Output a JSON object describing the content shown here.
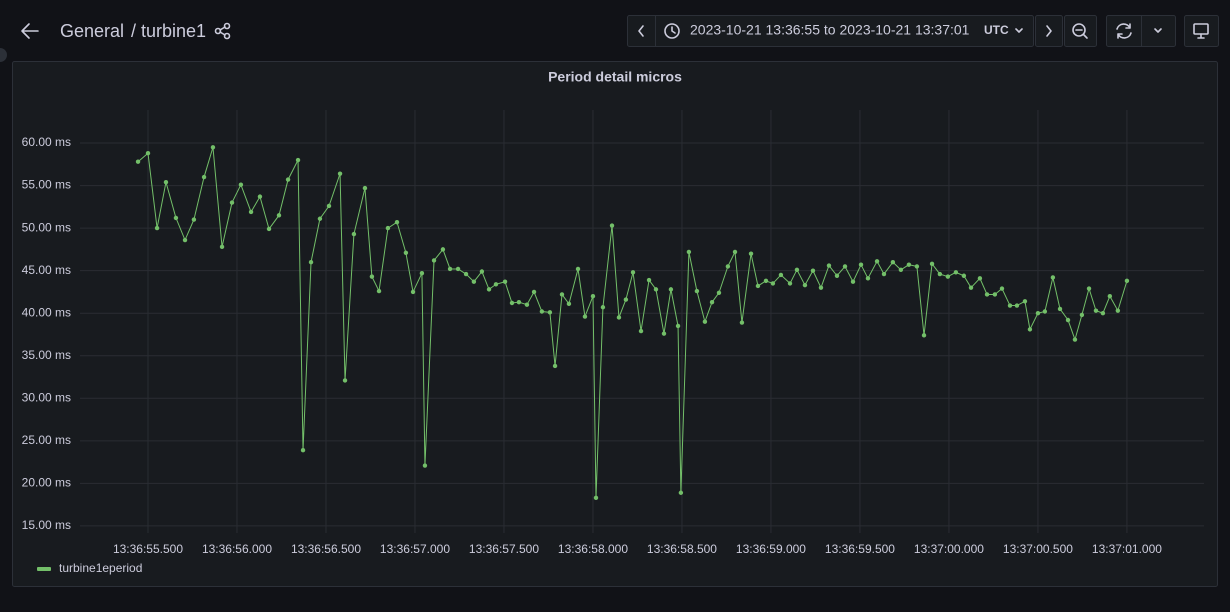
{
  "header": {
    "breadcrumb_root": "General",
    "breadcrumb_page": "/ turbine1",
    "time_range": "2023-10-21 13:36:55 to 2023-10-21 13:37:01",
    "timezone": "UTC"
  },
  "chart_data": {
    "type": "line",
    "title": "Period detail micros",
    "x": [
      "13:36:55.444",
      "13:36:55.500",
      "13:36:55.551",
      "13:36:55.601",
      "13:36:55.657",
      "13:36:55.708",
      "13:36:55.758",
      "13:36:55.815",
      "13:36:55.865",
      "13:36:55.916",
      "13:36:55.972",
      "13:36:56.022",
      "13:36:56.079",
      "13:36:56.129",
      "13:36:56.180",
      "13:36:56.236",
      "13:36:56.287",
      "13:36:56.343",
      "13:36:56.371",
      "13:36:56.416",
      "13:36:56.466",
      "13:36:56.517",
      "13:36:56.579",
      "13:36:56.607",
      "13:36:56.657",
      "13:36:56.719",
      "13:36:56.758",
      "13:36:56.798",
      "13:36:56.848",
      "13:36:56.899",
      "13:36:56.949",
      "13:36:56.989",
      "13:36:57.039",
      "13:36:57.056",
      "13:36:57.107",
      "13:36:57.157",
      "13:36:57.197",
      "13:36:57.242",
      "13:36:57.287",
      "13:36:57.331",
      "13:36:57.376",
      "13:36:57.416",
      "13:36:57.455",
      "13:36:57.506",
      "13:36:57.545",
      "13:36:57.584",
      "13:36:57.629",
      "13:36:57.669",
      "13:36:57.713",
      "13:36:57.758",
      "13:36:57.787",
      "13:36:57.826",
      "13:36:57.865",
      "13:36:57.916",
      "13:36:57.955",
      "13:36:58.000",
      "13:36:58.017",
      "13:36:58.056",
      "13:36:58.107",
      "13:36:58.146",
      "13:36:58.185",
      "13:36:58.225",
      "13:36:58.270",
      "13:36:58.315",
      "13:36:58.354",
      "13:36:58.399",
      "13:36:58.438",
      "13:36:58.478",
      "13:36:58.494",
      "13:36:58.539",
      "13:36:58.584",
      "13:36:58.629",
      "13:36:58.669",
      "13:36:58.708",
      "13:36:58.758",
      "13:36:58.798",
      "13:36:58.837",
      "13:36:58.888",
      "13:36:58.927",
      "13:36:58.972",
      "13:36:59.011",
      "13:36:59.056",
      "13:36:59.107",
      "13:36:59.146",
      "13:36:59.191",
      "13:36:59.236",
      "13:36:59.281",
      "13:36:59.326",
      "13:36:59.371",
      "13:36:59.416",
      "13:36:59.461",
      "13:36:59.506",
      "13:36:59.545",
      "13:36:59.596",
      "13:36:59.635",
      "13:36:59.685",
      "13:36:59.730",
      "13:36:59.775",
      "13:36:59.820",
      "13:36:59.860",
      "13:36:59.905",
      "13:36:59.949",
      "13:36:59.994",
      "13:37:00.039",
      "13:37:00.084",
      "13:37:00.124",
      "13:37:00.174",
      "13:37:00.214",
      "13:37:00.258",
      "13:37:00.298",
      "13:37:00.343",
      "13:37:00.382",
      "13:37:00.427",
      "13:37:00.455",
      "13:37:00.500",
      "13:37:00.539",
      "13:37:00.584",
      "13:37:00.624",
      "13:37:00.669",
      "13:37:00.708",
      "13:37:00.747",
      "13:37:00.787",
      "13:37:00.826",
      "13:37:00.865",
      "13:37:00.904",
      "13:37:00.949",
      "13:37:01.000"
    ],
    "series": [
      {
        "name": "turbine1eperiod",
        "color": "#73bf69",
        "values": [
          57.8,
          58.8,
          50.0,
          55.4,
          51.2,
          48.6,
          51.0,
          56.0,
          59.5,
          47.8,
          53.0,
          55.1,
          51.9,
          53.7,
          49.9,
          51.5,
          55.7,
          58.0,
          23.9,
          46.0,
          51.1,
          52.6,
          56.4,
          32.1,
          49.3,
          54.7,
          44.3,
          42.6,
          50.0,
          50.7,
          47.1,
          42.5,
          44.7,
          22.1,
          46.2,
          47.5,
          45.2,
          45.2,
          44.6,
          43.7,
          44.9,
          42.8,
          43.4,
          43.7,
          41.2,
          41.3,
          41.0,
          42.5,
          40.2,
          40.1,
          33.8,
          42.2,
          41.1,
          45.2,
          39.6,
          42.0,
          18.3,
          40.7,
          50.3,
          39.5,
          41.6,
          44.8,
          37.9,
          43.9,
          42.8,
          37.6,
          42.8,
          38.5,
          18.9,
          47.2,
          42.6,
          39.0,
          41.3,
          42.4,
          45.5,
          47.2,
          38.9,
          47.0,
          43.2,
          43.8,
          43.5,
          44.5,
          43.5,
          45.1,
          43.3,
          45.0,
          43.0,
          45.6,
          44.4,
          45.5,
          43.7,
          45.7,
          44.1,
          46.1,
          44.6,
          46.0,
          45.1,
          45.7,
          45.5,
          37.4,
          45.8,
          44.6,
          44.3,
          44.8,
          44.4,
          43.0,
          44.1,
          42.2,
          42.2,
          42.9,
          40.9,
          40.9,
          41.4,
          38.1,
          40.0,
          40.2,
          44.2,
          40.5,
          39.2,
          36.9,
          39.8,
          42.9,
          40.3,
          40.0,
          42.0,
          40.3,
          43.8
        ]
      }
    ],
    "xlim": [
      "13:36:55.118",
      "13:37:01.433"
    ],
    "xticks": [
      "13:36:55.500",
      "13:36:56.000",
      "13:36:56.500",
      "13:36:57.000",
      "13:36:57.500",
      "13:36:58.000",
      "13:36:58.500",
      "13:36:59.000",
      "13:36:59.500",
      "13:37:00.000",
      "13:37:00.500",
      "13:37:01.000"
    ],
    "ylim": [
      14.17,
      63.88
    ],
    "yticks": [
      {
        "value": 60,
        "label": "60.00 ms"
      },
      {
        "value": 55,
        "label": "55.00 ms"
      },
      {
        "value": 50,
        "label": "50.00 ms"
      },
      {
        "value": 45,
        "label": "45.00 ms"
      },
      {
        "value": 40,
        "label": "40.00 ms"
      },
      {
        "value": 35,
        "label": "35.00 ms"
      },
      {
        "value": 30,
        "label": "30.00 ms"
      },
      {
        "value": 25,
        "label": "25.00 ms"
      },
      {
        "value": 20,
        "label": "20.00 ms"
      },
      {
        "value": 15,
        "label": "15.00 ms"
      }
    ],
    "grid": true,
    "legend": "bottom-left"
  }
}
